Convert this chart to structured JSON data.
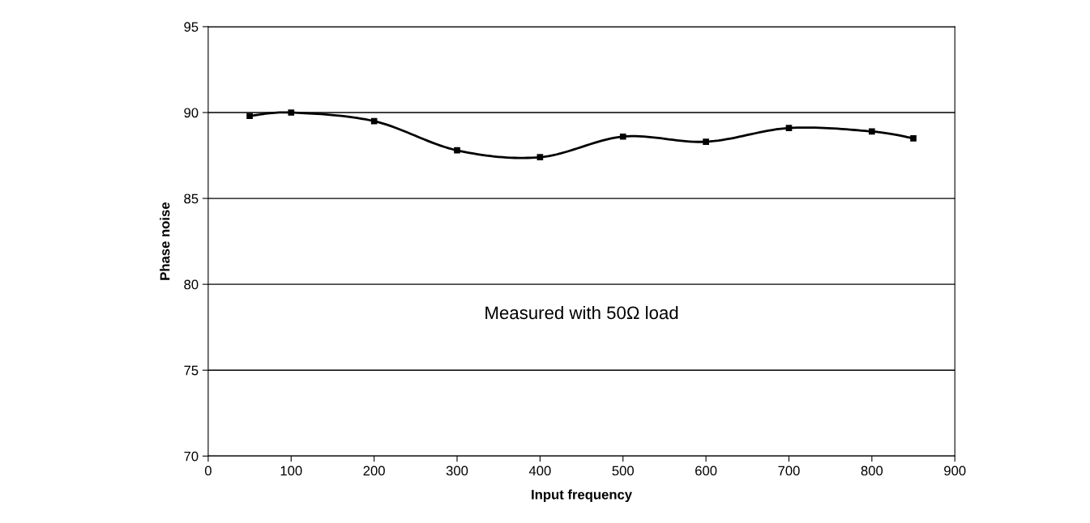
{
  "chart_data": {
    "type": "line",
    "xlabel": "Input frequency",
    "ylabel": "Phase noise",
    "x": [
      50,
      100,
      200,
      300,
      400,
      500,
      600,
      700,
      800,
      850
    ],
    "series": [
      {
        "color": "#000000",
        "values": [
          89.8,
          90.0,
          89.5,
          87.8,
          87.4,
          88.6,
          88.3,
          89.1,
          88.9,
          88.5
        ]
      }
    ],
    "xlim": [
      0,
      900
    ],
    "xticks": [
      0,
      100,
      200,
      300,
      400,
      500,
      600,
      700,
      800,
      900
    ],
    "ylim": [
      70,
      95
    ],
    "yticks": [
      70,
      75,
      80,
      85,
      90,
      95
    ],
    "grid": "y",
    "legend": false,
    "marker": "square",
    "line_style": "solid",
    "annotations": [
      "Measured with 50Ω load"
    ]
  }
}
